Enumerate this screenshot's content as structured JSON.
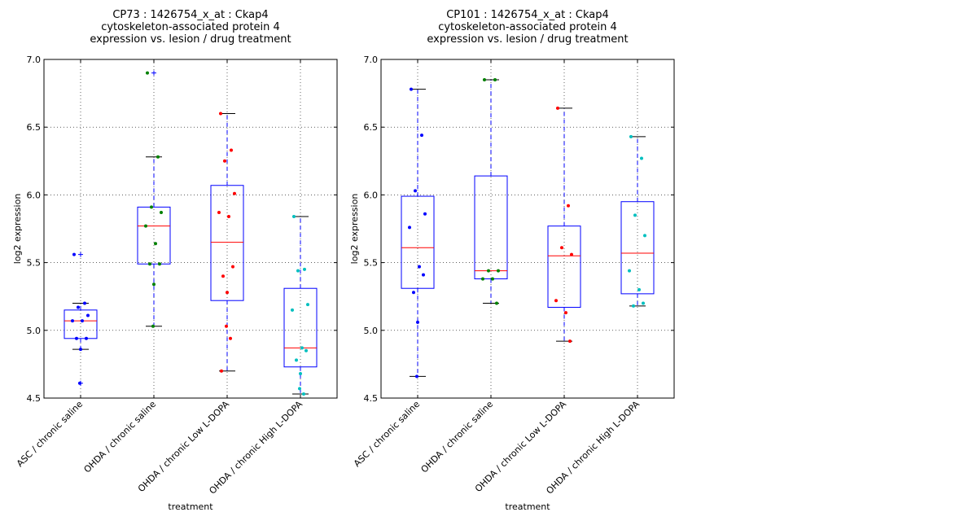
{
  "chart_data": [
    {
      "type": "box",
      "title_lines": [
        "CP73 : 1426754_x_at : Ckap4",
        "cytoskeleton-associated protein 4",
        "expression vs. lesion / drug treatment"
      ],
      "xlabel": "treatment",
      "ylabel": "log2 expression",
      "ylim": [
        4.5,
        7.0
      ],
      "yticks": [
        "4.5",
        "5.0",
        "5.5",
        "6.0",
        "6.5",
        "7.0"
      ],
      "grid": true,
      "categories": [
        "ASC / chronic saline",
        "OHDA / chronic saline",
        "OHDA / chronic Low L-DOPA",
        "OHDA / chronic High L-DOPA"
      ],
      "colors": [
        "#0000ff",
        "#008000",
        "#ff0000",
        "#00bfbf"
      ],
      "boxes": [
        {
          "q1": 4.94,
          "median": 5.07,
          "q3": 5.15,
          "whisker_low": 4.86,
          "whisker_high": 5.2,
          "outliers": [
            5.56,
            4.61
          ],
          "points": [
            5.56,
            5.2,
            5.17,
            5.11,
            5.07,
            5.07,
            4.94,
            4.94,
            4.86,
            4.61
          ]
        },
        {
          "q1": 5.49,
          "median": 5.77,
          "q3": 5.91,
          "whisker_low": 5.03,
          "whisker_high": 6.28,
          "outliers": [
            6.9
          ],
          "points": [
            6.9,
            6.28,
            5.91,
            5.87,
            5.77,
            5.64,
            5.49,
            5.49,
            5.34,
            5.03
          ]
        },
        {
          "q1": 5.22,
          "median": 5.65,
          "q3": 6.07,
          "whisker_low": 4.7,
          "whisker_high": 6.6,
          "outliers": [],
          "points": [
            6.6,
            6.33,
            6.25,
            6.01,
            5.87,
            5.84,
            5.47,
            5.4,
            5.28,
            5.03,
            4.94,
            4.7
          ]
        },
        {
          "q1": 4.73,
          "median": 4.87,
          "q3": 5.31,
          "whisker_low": 4.53,
          "whisker_high": 5.84,
          "outliers": [],
          "points": [
            5.84,
            5.45,
            5.44,
            5.19,
            5.15,
            4.87,
            4.85,
            4.78,
            4.68,
            4.57,
            4.53
          ]
        }
      ]
    },
    {
      "type": "box",
      "title_lines": [
        "CP101 : 1426754_x_at : Ckap4",
        "cytoskeleton-associated protein 4",
        "expression vs. lesion / drug treatment"
      ],
      "xlabel": "treatment",
      "ylabel": "log2 expression",
      "ylim": [
        4.5,
        7.0
      ],
      "yticks": [
        "4.5",
        "5.0",
        "5.5",
        "6.0",
        "6.5",
        "7.0"
      ],
      "grid": true,
      "categories": [
        "ASC / chronic saline",
        "OHDA / chronic saline",
        "OHDA / chronic Low L-DOPA",
        "OHDA / chronic High L-DOPA"
      ],
      "colors": [
        "#0000ff",
        "#008000",
        "#ff0000",
        "#00bfbf"
      ],
      "boxes": [
        {
          "q1": 5.31,
          "median": 5.61,
          "q3": 5.99,
          "whisker_low": 4.66,
          "whisker_high": 6.78,
          "outliers": [],
          "points": [
            6.78,
            6.44,
            6.03,
            5.86,
            5.76,
            5.47,
            5.41,
            5.28,
            5.06,
            4.66
          ]
        },
        {
          "q1": 5.38,
          "median": 5.44,
          "q3": 6.14,
          "whisker_low": 5.2,
          "whisker_high": 6.85,
          "outliers": [],
          "points": [
            6.85,
            6.85,
            5.44,
            5.44,
            5.38,
            5.38,
            5.2
          ]
        },
        {
          "q1": 5.17,
          "median": 5.55,
          "q3": 5.77,
          "whisker_low": 4.92,
          "whisker_high": 6.64,
          "outliers": [],
          "points": [
            6.64,
            5.92,
            5.61,
            5.56,
            5.22,
            5.13,
            4.92
          ]
        },
        {
          "q1": 5.27,
          "median": 5.57,
          "q3": 5.95,
          "whisker_low": 5.18,
          "whisker_high": 6.43,
          "outliers": [],
          "points": [
            6.43,
            6.27,
            5.85,
            5.7,
            5.44,
            5.3,
            5.2,
            5.18
          ]
        }
      ]
    }
  ]
}
